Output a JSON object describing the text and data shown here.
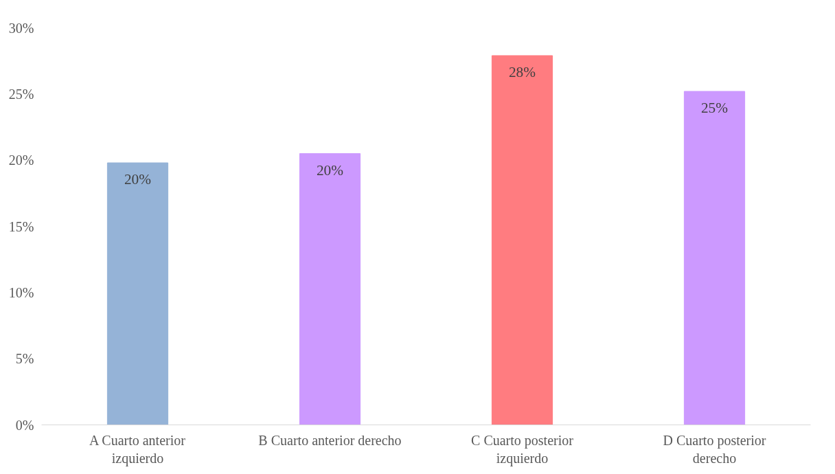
{
  "chart_data": {
    "type": "bar",
    "categories": [
      "A Cuarto anterior izquierdo",
      "B Cuarto anterior derecho",
      "C Cuarto posterior izquierdo",
      "D Cuarto posterior derecho"
    ],
    "values": [
      19.8,
      20.5,
      27.9,
      25.2
    ],
    "colors": [
      "#95b3d7",
      "#cc99ff",
      "#ff7c80",
      "#cc99ff"
    ],
    "value_labels": [
      "20%",
      "20%",
      "28%",
      "25%"
    ],
    "ylim": [
      0,
      30
    ],
    "yticks": [
      {
        "value": 0,
        "label": "0%"
      },
      {
        "value": 5,
        "label": "5%"
      },
      {
        "value": 10,
        "label": "10%"
      },
      {
        "value": 15,
        "label": "15%"
      },
      {
        "value": 20,
        "label": "20%"
      },
      {
        "value": 25,
        "label": "25%"
      },
      {
        "value": 30,
        "label": "30%"
      }
    ],
    "grid": false
  }
}
